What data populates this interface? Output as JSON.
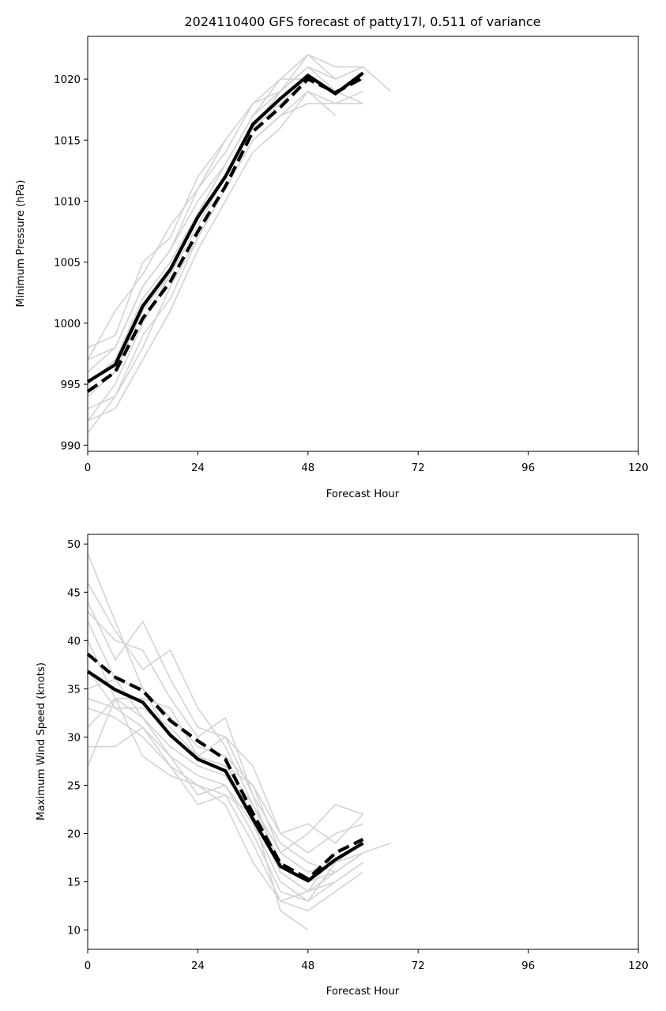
{
  "chart_data": [
    {
      "type": "line",
      "title": "2024110400 GFS forecast of patty17l, 0.511 of variance",
      "xlabel": "Forecast Hour",
      "ylabel": "Minimum Pressure (hPa)",
      "xlim": [
        0,
        120
      ],
      "ylim": [
        989.5,
        1023.5
      ],
      "xticks": [
        0,
        24,
        48,
        72,
        96,
        120
      ],
      "yticks": [
        990,
        995,
        1000,
        1005,
        1010,
        1015,
        1020
      ],
      "grid": false,
      "colors": {
        "ensemble": "#d3d3d3",
        "highlight": "#000000"
      },
      "series": [
        {
          "style": "solid",
          "role": "highlight",
          "x": [
            0,
            6,
            12,
            18,
            24,
            30,
            36,
            42,
            48,
            54,
            60
          ],
          "y": [
            995.2,
            996.6,
            1001.4,
            1004.4,
            1008.7,
            1012.0,
            1016.3,
            1018.4,
            1020.3,
            1018.8,
            1020.5
          ]
        },
        {
          "style": "dashed",
          "role": "highlight",
          "x": [
            0,
            6,
            12,
            18,
            24,
            30,
            36,
            42,
            48,
            54,
            60
          ],
          "y": [
            994.4,
            996.0,
            1000.4,
            1003.4,
            1007.5,
            1011.2,
            1015.7,
            1017.7,
            1020.0,
            1018.9,
            1020.1
          ]
        },
        {
          "style": "solid",
          "role": "ensemble",
          "x": [
            0,
            6,
            12,
            18,
            24,
            30,
            36,
            42,
            48,
            54,
            60,
            66
          ],
          "y": [
            998,
            999,
            1005,
            1007,
            1012,
            1015,
            1018,
            1020,
            1022,
            1021,
            1021,
            1019
          ]
        },
        {
          "style": "solid",
          "role": "ensemble",
          "x": [
            0,
            6,
            12,
            18,
            24,
            30
          ],
          "y": [
            997,
            1001,
            1004,
            1008,
            1011,
            1015
          ]
        },
        {
          "style": "solid",
          "role": "ensemble",
          "x": [
            0,
            6,
            12,
            18,
            24,
            30,
            36,
            42,
            48,
            54,
            60
          ],
          "y": [
            996,
            998,
            1003,
            1006,
            1010,
            1013,
            1017,
            1019,
            1021,
            1020,
            1021
          ]
        },
        {
          "style": "solid",
          "role": "ensemble",
          "x": [
            0,
            6,
            12,
            18,
            24,
            30,
            36,
            42,
            48,
            54,
            60
          ],
          "y": [
            995,
            997,
            1002,
            1005,
            1009,
            1012,
            1016,
            1019,
            1021,
            1019,
            1020
          ]
        },
        {
          "style": "solid",
          "role": "ensemble",
          "x": [
            0,
            6,
            12,
            18,
            24,
            30,
            36,
            42,
            48,
            54,
            60
          ],
          "y": [
            994,
            996,
            1001,
            1004,
            1008,
            1012,
            1016,
            1018,
            1020,
            1019,
            1018
          ]
        },
        {
          "style": "solid",
          "role": "ensemble",
          "x": [
            0,
            6,
            12,
            18,
            24,
            30,
            36,
            42,
            48,
            54
          ],
          "y": [
            993,
            994,
            999,
            1002,
            1007,
            1011,
            1015,
            1017,
            1019,
            1017
          ]
        },
        {
          "style": "solid",
          "role": "ensemble",
          "x": [
            0,
            6,
            12,
            18,
            24,
            30,
            36,
            42,
            48,
            54,
            60
          ],
          "y": [
            992,
            993,
            997,
            1001,
            1006,
            1010,
            1014,
            1016,
            1019,
            1018,
            1019
          ]
        },
        {
          "style": "solid",
          "role": "ensemble",
          "x": [
            0,
            6,
            12,
            18,
            24,
            30,
            36,
            42,
            48,
            54,
            60
          ],
          "y": [
            991,
            994,
            998,
            1003,
            1007,
            1011,
            1015,
            1017,
            1018,
            1018,
            1018
          ]
        },
        {
          "style": "solid",
          "role": "ensemble",
          "x": [
            0,
            6,
            12,
            18,
            24,
            30,
            36,
            42,
            48,
            54,
            60
          ],
          "y": [
            992,
            995,
            1000,
            1004,
            1009,
            1013,
            1017,
            1020,
            1020,
            1019,
            1020
          ]
        },
        {
          "style": "solid",
          "role": "ensemble",
          "x": [
            0,
            6,
            12,
            18,
            24,
            30,
            36,
            42,
            48,
            54,
            60
          ],
          "y": [
            997,
            998,
            1003,
            1006,
            1011,
            1014,
            1018,
            1019,
            1022,
            1020,
            1021
          ]
        }
      ]
    },
    {
      "type": "line",
      "title": "",
      "xlabel": "Forecast Hour",
      "ylabel": "Maximum Wind Speed (knots)",
      "xlim": [
        0,
        120
      ],
      "ylim": [
        8,
        51
      ],
      "xticks": [
        0,
        24,
        48,
        72,
        96,
        120
      ],
      "yticks": [
        10,
        15,
        20,
        25,
        30,
        35,
        40,
        45,
        50
      ],
      "grid": false,
      "colors": {
        "ensemble": "#d3d3d3",
        "highlight": "#000000"
      },
      "series": [
        {
          "style": "solid",
          "role": "highlight",
          "x": [
            0,
            6,
            12,
            18,
            24,
            30,
            36,
            42,
            48,
            54,
            60
          ],
          "y": [
            36.8,
            34.9,
            33.6,
            30.2,
            27.7,
            26.5,
            21.5,
            16.6,
            15.1,
            17.3,
            19.0
          ]
        },
        {
          "style": "dashed",
          "role": "highlight",
          "x": [
            0,
            6,
            12,
            18,
            24,
            30,
            36,
            42,
            48,
            54,
            60
          ],
          "y": [
            38.6,
            36.2,
            34.8,
            31.7,
            29.6,
            27.7,
            22.1,
            16.9,
            15.3,
            18.0,
            19.4
          ]
        },
        {
          "style": "solid",
          "role": "ensemble",
          "x": [
            0,
            6,
            12,
            18,
            24,
            30,
            36,
            42,
            48,
            54,
            60
          ],
          "y": [
            49,
            42,
            35,
            30,
            28,
            27,
            25,
            20,
            21,
            19,
            22
          ]
        },
        {
          "style": "solid",
          "role": "ensemble",
          "x": [
            0,
            6,
            12,
            18,
            24,
            30,
            36,
            42,
            48,
            54,
            60
          ],
          "y": [
            46,
            41,
            37,
            39,
            33,
            29,
            23,
            18,
            20,
            23,
            22
          ]
        },
        {
          "style": "solid",
          "role": "ensemble",
          "x": [
            0,
            6,
            12,
            18,
            24,
            30,
            36,
            42,
            48,
            54,
            60
          ],
          "y": [
            44,
            38,
            42,
            36,
            31,
            30,
            27,
            20,
            18,
            20,
            21
          ]
        },
        {
          "style": "solid",
          "role": "ensemble",
          "x": [
            0,
            6,
            12,
            18,
            24,
            30,
            36,
            42,
            48,
            54,
            60
          ],
          "y": [
            43,
            40,
            39,
            34,
            30,
            32,
            24,
            19,
            17,
            16,
            18
          ]
        },
        {
          "style": "solid",
          "role": "ensemble",
          "x": [
            0,
            6,
            12,
            18,
            24,
            30,
            36,
            42,
            48,
            54,
            60
          ],
          "y": [
            42,
            36,
            35,
            32,
            29,
            28,
            25,
            18,
            16,
            17,
            19
          ]
        },
        {
          "style": "solid",
          "role": "ensemble",
          "x": [
            0,
            6,
            12,
            18,
            24,
            30,
            36,
            42,
            48,
            54,
            60
          ],
          "y": [
            40,
            34,
            34,
            33,
            28,
            27,
            23,
            17,
            15,
            16,
            18
          ]
        },
        {
          "style": "solid",
          "role": "ensemble",
          "x": [
            0,
            6,
            12,
            18,
            24,
            30,
            36,
            42,
            48,
            54,
            60
          ],
          "y": [
            37,
            33,
            33,
            31,
            28,
            30,
            24,
            16,
            14,
            15,
            17
          ]
        },
        {
          "style": "solid",
          "role": "ensemble",
          "x": [
            0,
            6,
            12,
            18,
            24,
            30,
            36,
            42,
            48,
            54,
            60
          ],
          "y": [
            35,
            36,
            32,
            29,
            27,
            26,
            22,
            16,
            14,
            16,
            18
          ]
        },
        {
          "style": "solid",
          "role": "ensemble",
          "x": [
            0,
            6,
            12,
            18,
            24,
            30,
            36,
            42,
            48,
            54,
            60
          ],
          "y": [
            34,
            33,
            31,
            28,
            26,
            25,
            20,
            14,
            13,
            15,
            17
          ]
        },
        {
          "style": "solid",
          "role": "ensemble",
          "x": [
            0,
            6,
            12,
            18,
            24,
            30,
            36,
            42,
            48,
            54,
            60
          ],
          "y": [
            33,
            32,
            30,
            27,
            25,
            24,
            19,
            13,
            12,
            14,
            16
          ]
        },
        {
          "style": "solid",
          "role": "ensemble",
          "x": [
            0,
            6,
            12,
            18,
            24,
            30,
            36,
            42,
            48,
            54,
            60,
            66
          ],
          "y": [
            31,
            34,
            32,
            28,
            24,
            25,
            21,
            15,
            13,
            17,
            18,
            19
          ]
        },
        {
          "style": "solid",
          "role": "ensemble",
          "x": [
            0,
            6,
            12,
            18,
            24,
            30,
            36,
            42,
            48
          ],
          "y": [
            29,
            29,
            31,
            27,
            23,
            24,
            22,
            12,
            10
          ]
        },
        {
          "style": "solid",
          "role": "ensemble",
          "x": [
            0,
            6,
            12,
            18,
            24,
            30,
            36,
            42,
            48,
            54
          ],
          "y": [
            27,
            34,
            28,
            26,
            25,
            23,
            17,
            13,
            14,
            18
          ]
        }
      ]
    }
  ]
}
